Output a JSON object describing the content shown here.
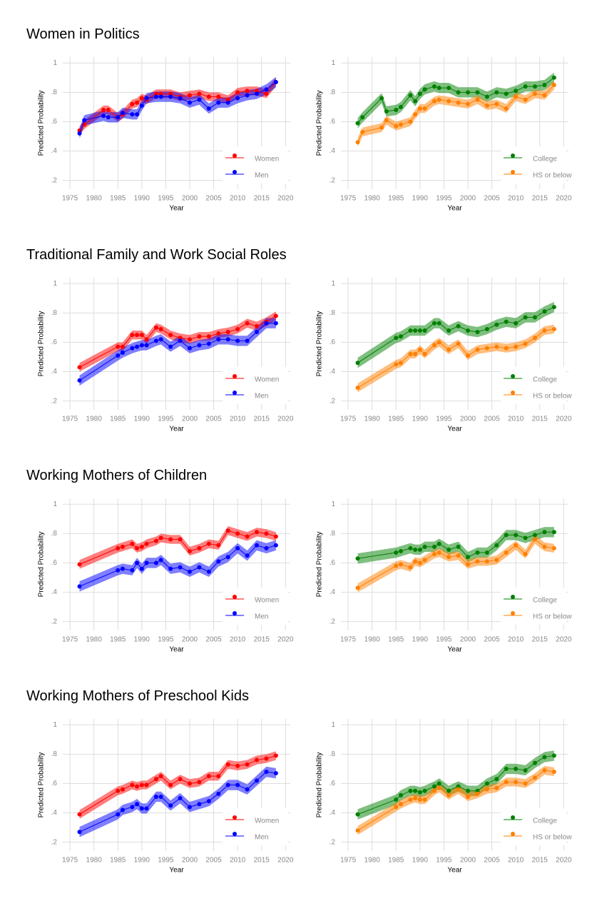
{
  "chart_data": [
    {
      "type": "line",
      "title": "Women in Politics",
      "xlabel": "Year",
      "ylabel": "Predicted Probability",
      "grid": true,
      "legend": "bottom-right",
      "band_opacity": 0.5,
      "xlim": [
        1973.5,
        2021
      ],
      "xticks": [
        1975,
        1980,
        1985,
        1990,
        1995,
        2000,
        2005,
        2010,
        2015,
        2020
      ],
      "ylim": [
        0.14,
        1.04
      ],
      "yticks": [
        {
          "value": 0.2,
          "label": ".2"
        },
        {
          "value": 0.4,
          "label": ".4"
        },
        {
          "value": 0.6,
          "label": ".6"
        },
        {
          "value": 0.8,
          "label": ".8"
        },
        1
      ],
      "x": [
        1977,
        1978,
        1982,
        1983,
        1985,
        1986,
        1988,
        1989,
        1990,
        1991,
        1993,
        1994,
        1996,
        1998,
        2000,
        2002,
        2004,
        2006,
        2008,
        2010,
        2012,
        2014,
        2016,
        2018
      ],
      "series": [
        {
          "name": "Women",
          "color": "#ff0000",
          "band": 0.03,
          "values": [
            0.54,
            0.58,
            0.68,
            0.68,
            0.63,
            0.65,
            0.72,
            0.73,
            0.76,
            0.75,
            0.79,
            0.79,
            0.79,
            0.77,
            0.78,
            0.79,
            0.77,
            0.77,
            0.75,
            0.8,
            0.81,
            0.81,
            0.79,
            0.87
          ]
        },
        {
          "name": "Men",
          "color": "#0000ff",
          "band": 0.035,
          "values": [
            0.52,
            0.61,
            0.64,
            0.63,
            0.63,
            0.66,
            0.65,
            0.65,
            0.71,
            0.76,
            0.77,
            0.77,
            0.77,
            0.76,
            0.73,
            0.75,
            0.69,
            0.73,
            0.73,
            0.76,
            0.78,
            0.79,
            0.82,
            0.87
          ]
        }
      ]
    },
    {
      "type": "line",
      "xlabel": "Year",
      "ylabel": "Predicted Probability",
      "grid": true,
      "legend": "bottom-right",
      "band_opacity": 0.5,
      "xlim": [
        1973.5,
        2021
      ],
      "xticks": [
        1975,
        1980,
        1985,
        1990,
        1995,
        2000,
        2005,
        2010,
        2015,
        2020
      ],
      "ylim": [
        0.14,
        1.04
      ],
      "yticks": [
        {
          "value": 0.2,
          "label": ".2"
        },
        {
          "value": 0.4,
          "label": ".4"
        },
        {
          "value": 0.6,
          "label": ".6"
        },
        {
          "value": 0.8,
          "label": ".8"
        },
        1
      ],
      "x": [
        1977,
        1978,
        1982,
        1983,
        1985,
        1986,
        1988,
        1989,
        1990,
        1991,
        1993,
        1994,
        1996,
        1998,
        2000,
        2002,
        2004,
        2006,
        2008,
        2010,
        2012,
        2014,
        2016,
        2018
      ],
      "series": [
        {
          "name": "College",
          "color": "#008000",
          "band": 0.035,
          "values": [
            0.59,
            0.63,
            0.76,
            0.67,
            0.68,
            0.7,
            0.78,
            0.74,
            0.79,
            0.82,
            0.84,
            0.83,
            0.83,
            0.8,
            0.8,
            0.8,
            0.77,
            0.8,
            0.79,
            0.81,
            0.84,
            0.84,
            0.85,
            0.9
          ]
        },
        {
          "name": "HS or below",
          "color": "#ff7f00",
          "band": 0.03,
          "values": [
            0.46,
            0.53,
            0.56,
            0.61,
            0.57,
            0.58,
            0.6,
            0.65,
            0.69,
            0.69,
            0.74,
            0.75,
            0.74,
            0.73,
            0.72,
            0.75,
            0.71,
            0.72,
            0.69,
            0.77,
            0.75,
            0.79,
            0.78,
            0.85
          ]
        }
      ]
    },
    {
      "type": "line",
      "title": "Traditional Family and Work Social Roles",
      "xlabel": "Year",
      "ylabel": "Predicted Probability",
      "grid": true,
      "legend": "bottom-right",
      "band_opacity": 0.5,
      "xlim": [
        1973.5,
        2021
      ],
      "xticks": [
        1975,
        1980,
        1985,
        1990,
        1995,
        2000,
        2005,
        2010,
        2015,
        2020
      ],
      "ylim": [
        0.14,
        1.04
      ],
      "yticks": [
        {
          "value": 0.2,
          "label": ".2"
        },
        {
          "value": 0.4,
          "label": ".4"
        },
        {
          "value": 0.6,
          "label": ".6"
        },
        {
          "value": 0.8,
          "label": ".8"
        },
        1
      ],
      "x": [
        1977,
        1985,
        1986,
        1988,
        1989,
        1990,
        1991,
        1993,
        1994,
        1996,
        1998,
        2000,
        2002,
        2004,
        2006,
        2008,
        2010,
        2012,
        2014,
        2016,
        2018
      ],
      "series": [
        {
          "name": "Women",
          "color": "#ff0000",
          "band": 0.03,
          "values": [
            0.43,
            0.57,
            0.57,
            0.65,
            0.65,
            0.65,
            0.62,
            0.7,
            0.69,
            0.65,
            0.63,
            0.62,
            0.64,
            0.64,
            0.66,
            0.67,
            0.69,
            0.73,
            0.71,
            0.74,
            0.78
          ]
        },
        {
          "name": "Men",
          "color": "#0000ff",
          "band": 0.035,
          "values": [
            0.34,
            0.51,
            0.53,
            0.56,
            0.57,
            0.58,
            0.58,
            0.61,
            0.62,
            0.57,
            0.61,
            0.56,
            0.58,
            0.59,
            0.62,
            0.62,
            0.61,
            0.61,
            0.67,
            0.73,
            0.73
          ]
        }
      ]
    },
    {
      "type": "line",
      "xlabel": "Year",
      "ylabel": "Predicted Probability",
      "grid": true,
      "legend": "bottom-right",
      "band_opacity": 0.5,
      "xlim": [
        1973.5,
        2021
      ],
      "xticks": [
        1975,
        1980,
        1985,
        1990,
        1995,
        2000,
        2005,
        2010,
        2015,
        2020
      ],
      "ylim": [
        0.14,
        1.04
      ],
      "yticks": [
        {
          "value": 0.2,
          "label": ".2"
        },
        {
          "value": 0.4,
          "label": ".4"
        },
        {
          "value": 0.6,
          "label": ".6"
        },
        {
          "value": 0.8,
          "label": ".8"
        },
        1
      ],
      "x": [
        1977,
        1985,
        1986,
        1988,
        1989,
        1990,
        1991,
        1993,
        1994,
        1996,
        1998,
        2000,
        2002,
        2004,
        2006,
        2008,
        2010,
        2012,
        2014,
        2016,
        2018
      ],
      "series": [
        {
          "name": "College",
          "color": "#008000",
          "band": 0.035,
          "values": [
            0.46,
            0.63,
            0.64,
            0.68,
            0.68,
            0.68,
            0.68,
            0.73,
            0.73,
            0.68,
            0.71,
            0.68,
            0.67,
            0.69,
            0.72,
            0.74,
            0.73,
            0.77,
            0.77,
            0.81,
            0.84
          ]
        },
        {
          "name": "HS or below",
          "color": "#ff7f00",
          "band": 0.03,
          "values": [
            0.29,
            0.45,
            0.46,
            0.52,
            0.52,
            0.55,
            0.52,
            0.58,
            0.6,
            0.55,
            0.59,
            0.51,
            0.55,
            0.56,
            0.57,
            0.56,
            0.57,
            0.59,
            0.63,
            0.68,
            0.69
          ]
        }
      ]
    },
    {
      "type": "line",
      "title": "Working Mothers of Children",
      "xlabel": "Year",
      "ylabel": "Predicted Probability",
      "grid": true,
      "legend": "bottom-right",
      "band_opacity": 0.5,
      "xlim": [
        1973.5,
        2021
      ],
      "xticks": [
        1975,
        1980,
        1985,
        1990,
        1995,
        2000,
        2005,
        2010,
        2015,
        2020
      ],
      "ylim": [
        0.14,
        1.04
      ],
      "yticks": [
        {
          "value": 0.2,
          "label": ".2"
        },
        {
          "value": 0.4,
          "label": ".4"
        },
        {
          "value": 0.6,
          "label": ".6"
        },
        {
          "value": 0.8,
          "label": ".8"
        },
        1
      ],
      "x": [
        1977,
        1985,
        1986,
        1988,
        1989,
        1990,
        1991,
        1993,
        1994,
        1996,
        1998,
        2000,
        2002,
        2004,
        2006,
        2008,
        2010,
        2012,
        2014,
        2016,
        2018
      ],
      "series": [
        {
          "name": "Women",
          "color": "#ff0000",
          "band": 0.03,
          "values": [
            0.59,
            0.7,
            0.71,
            0.73,
            0.7,
            0.71,
            0.73,
            0.75,
            0.77,
            0.76,
            0.76,
            0.68,
            0.7,
            0.73,
            0.72,
            0.82,
            0.8,
            0.78,
            0.81,
            0.8,
            0.78
          ]
        },
        {
          "name": "Men",
          "color": "#0000ff",
          "band": 0.035,
          "values": [
            0.44,
            0.55,
            0.56,
            0.55,
            0.6,
            0.56,
            0.6,
            0.6,
            0.62,
            0.56,
            0.57,
            0.54,
            0.57,
            0.54,
            0.61,
            0.64,
            0.7,
            0.65,
            0.72,
            0.7,
            0.72
          ]
        }
      ]
    },
    {
      "type": "line",
      "xlabel": "Year",
      "ylabel": "Predicted Probability",
      "grid": true,
      "legend": "bottom-right",
      "band_opacity": 0.5,
      "xlim": [
        1973.5,
        2021
      ],
      "xticks": [
        1975,
        1980,
        1985,
        1990,
        1995,
        2000,
        2005,
        2010,
        2015,
        2020
      ],
      "ylim": [
        0.14,
        1.04
      ],
      "yticks": [
        {
          "value": 0.2,
          "label": ".2"
        },
        {
          "value": 0.4,
          "label": ".4"
        },
        {
          "value": 0.6,
          "label": ".6"
        },
        {
          "value": 0.8,
          "label": ".8"
        },
        1
      ],
      "x": [
        1977,
        1985,
        1986,
        1988,
        1989,
        1990,
        1991,
        1993,
        1994,
        1996,
        1998,
        2000,
        2002,
        2004,
        2006,
        2008,
        2010,
        2012,
        2014,
        2016,
        2018
      ],
      "series": [
        {
          "name": "College",
          "color": "#008000",
          "band": 0.035,
          "values": [
            0.63,
            0.67,
            0.68,
            0.7,
            0.69,
            0.69,
            0.71,
            0.71,
            0.73,
            0.69,
            0.71,
            0.64,
            0.67,
            0.67,
            0.72,
            0.79,
            0.79,
            0.77,
            0.79,
            0.81,
            0.81
          ]
        },
        {
          "name": "HS or below",
          "color": "#ff7f00",
          "band": 0.03,
          "values": [
            0.43,
            0.58,
            0.59,
            0.57,
            0.61,
            0.6,
            0.62,
            0.66,
            0.67,
            0.64,
            0.65,
            0.59,
            0.61,
            0.61,
            0.62,
            0.67,
            0.72,
            0.66,
            0.76,
            0.71,
            0.7
          ]
        }
      ]
    },
    {
      "type": "line",
      "title": "Working Mothers of Preschool Kids",
      "xlabel": "Year",
      "ylabel": "Predicted Probability",
      "grid": true,
      "legend": "bottom-right",
      "band_opacity": 0.5,
      "xlim": [
        1973.5,
        2021
      ],
      "xticks": [
        1975,
        1980,
        1985,
        1990,
        1995,
        2000,
        2005,
        2010,
        2015,
        2020
      ],
      "ylim": [
        0.14,
        1.04
      ],
      "yticks": [
        {
          "value": 0.2,
          "label": ".2"
        },
        {
          "value": 0.4,
          "label": ".4"
        },
        {
          "value": 0.6,
          "label": ".6"
        },
        {
          "value": 0.8,
          "label": ".8"
        },
        1
      ],
      "x": [
        1977,
        1985,
        1986,
        1988,
        1989,
        1990,
        1991,
        1993,
        1994,
        1996,
        1998,
        2000,
        2002,
        2004,
        2006,
        2008,
        2010,
        2012,
        2014,
        2016,
        2018
      ],
      "series": [
        {
          "name": "Women",
          "color": "#ff0000",
          "band": 0.03,
          "values": [
            0.39,
            0.55,
            0.56,
            0.59,
            0.58,
            0.59,
            0.59,
            0.63,
            0.65,
            0.59,
            0.63,
            0.6,
            0.61,
            0.65,
            0.65,
            0.73,
            0.72,
            0.73,
            0.76,
            0.77,
            0.79
          ]
        },
        {
          "name": "Men",
          "color": "#0000ff",
          "band": 0.035,
          "values": [
            0.27,
            0.39,
            0.42,
            0.44,
            0.46,
            0.43,
            0.43,
            0.51,
            0.51,
            0.45,
            0.5,
            0.44,
            0.46,
            0.48,
            0.53,
            0.59,
            0.59,
            0.56,
            0.62,
            0.68,
            0.67
          ]
        }
      ]
    },
    {
      "type": "line",
      "xlabel": "Year",
      "ylabel": "Predicted Probability",
      "grid": true,
      "legend": "bottom-right",
      "band_opacity": 0.5,
      "xlim": [
        1973.5,
        2021
      ],
      "xticks": [
        1975,
        1980,
        1985,
        1990,
        1995,
        2000,
        2005,
        2010,
        2015,
        2020
      ],
      "ylim": [
        0.14,
        1.04
      ],
      "yticks": [
        {
          "value": 0.2,
          "label": ".2"
        },
        {
          "value": 0.4,
          "label": ".4"
        },
        {
          "value": 0.6,
          "label": ".6"
        },
        {
          "value": 0.8,
          "label": ".8"
        },
        1
      ],
      "x": [
        1977,
        1985,
        1986,
        1988,
        1989,
        1990,
        1991,
        1993,
        1994,
        1996,
        1998,
        2000,
        2002,
        2004,
        2006,
        2008,
        2010,
        2012,
        2014,
        2016,
        2018
      ],
      "series": [
        {
          "name": "College",
          "color": "#008000",
          "band": 0.035,
          "values": [
            0.39,
            0.49,
            0.52,
            0.55,
            0.55,
            0.54,
            0.55,
            0.58,
            0.6,
            0.55,
            0.58,
            0.55,
            0.55,
            0.6,
            0.63,
            0.7,
            0.7,
            0.69,
            0.74,
            0.78,
            0.79
          ]
        },
        {
          "name": "HS or below",
          "color": "#ff7f00",
          "band": 0.03,
          "values": [
            0.28,
            0.44,
            0.46,
            0.49,
            0.5,
            0.49,
            0.49,
            0.55,
            0.57,
            0.52,
            0.56,
            0.51,
            0.53,
            0.56,
            0.57,
            0.61,
            0.61,
            0.6,
            0.64,
            0.69,
            0.68
          ]
        }
      ]
    }
  ]
}
